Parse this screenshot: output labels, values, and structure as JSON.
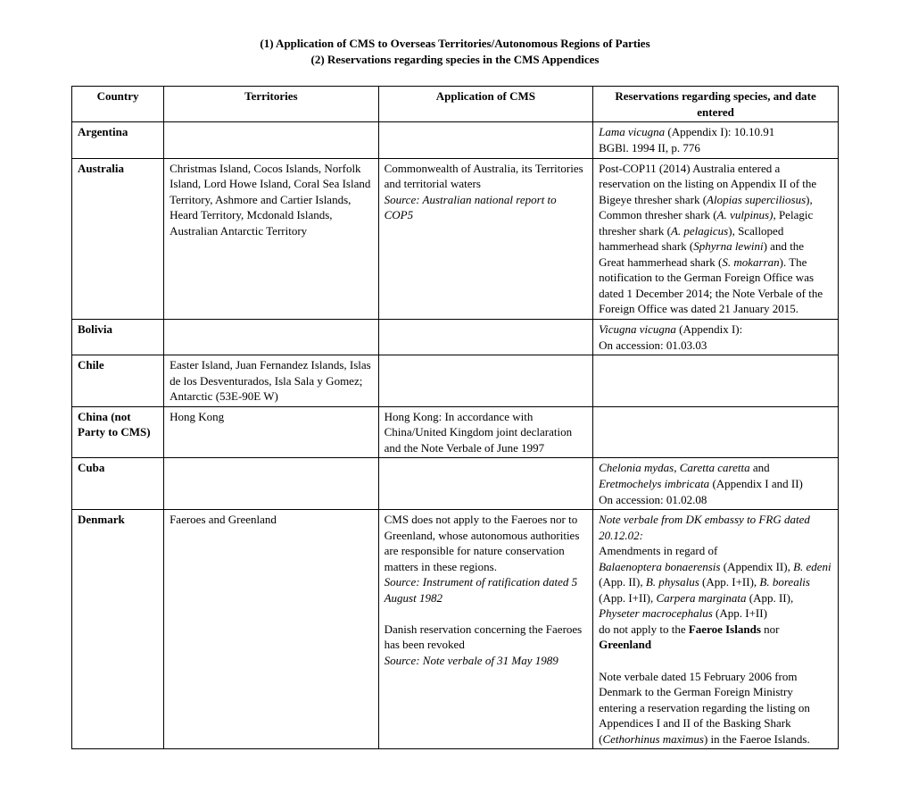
{
  "title1": "(1)  Application of CMS to Overseas Territories/Autonomous Regions of Parties",
  "title2": "(2)  Reservations regarding species in the CMS Appendices",
  "headers": {
    "country": "Country",
    "territories": "Territories",
    "application": "Application of CMS",
    "reservations": "Reservations regarding species, and date entered"
  },
  "rows": {
    "argentina": {
      "country": "Argentina",
      "res_species": "Lama vicugna",
      "res_after": " (Appendix I):  10.10.91",
      "res_line2": "BGBl. 1994 II, p. 776"
    },
    "australia": {
      "country": "Australia",
      "territories": "Christmas Island, Cocos Islands, Norfolk Island, Lord Howe Island, Coral Sea Island Territory, Ashmore and Cartier Islands, Heard Territory, Mcdonald Islands, Australian Antarctic Territory",
      "app_line1": "Commonwealth of Australia, its Territories and territorial waters",
      "app_source": "Source: Australian national report to COP5",
      "res_a": "Post-COP11 (2014) Australia entered a reservation on the listing on Appendix II of the Bigeye thresher shark (",
      "res_sp1": "Alopias superciliosus",
      "res_b": "), Common thresher shark (",
      "res_sp2": "A. vulpinus),",
      "res_c": " Pelagic thresher shark (",
      "res_sp3": "A. pelagicus",
      "res_d": "), Scalloped hammerhead shark (",
      "res_sp4": "Sphyrna lewini",
      "res_e": ") and the Great hammerhead shark (",
      "res_sp5": "S. mokarran",
      "res_f": ").  The notification to the German Foreign Office was dated 1 December 2014; the Note Verbale of the Foreign Office was dated 21 January 2015."
    },
    "bolivia": {
      "country": "Bolivia",
      "res_sp": "Vicugna vicugna",
      "res_after": " (Appendix I):",
      "res_line2": "On accession: 01.03.03"
    },
    "chile": {
      "country": "Chile",
      "territories": "Easter Island, Juan Fernandez Islands, Islas de los Desventurados, Isla Sala y Gomez; Antarctic (53E-90E W)"
    },
    "china": {
      "country": "China (not Party to CMS)",
      "territories": "Hong Kong",
      "application": "Hong Kong:  In accordance with China/United Kingdom joint declaration and the Note Verbale of June 1997"
    },
    "cuba": {
      "country": "Cuba",
      "res_sp1": "Chelonia mydas",
      "res_mid1": ", ",
      "res_sp2": "Caretta caretta",
      "res_mid2": " and ",
      "res_sp3": "Eretmochelys imbricata",
      "res_after": " (Appendix I and II)",
      "res_line2": "On accession:  01.02.08"
    },
    "denmark": {
      "country": "Denmark",
      "territories": "Faeroes and Greenland",
      "app_p1": "CMS does not apply to the Faeroes nor to Greenland, whose autonomous authorities are responsible for nature conservation matters in these regions.",
      "app_src1": "Source: Instrument of ratification dated 5 August 1982",
      "app_p2": "Danish reservation concerning the Faeroes has been revoked",
      "app_src2": "Source: Note verbale of 31 May 1989",
      "res_nv": "Note verbale from DK embassy to FRG dated 20.12.02:",
      "res_a": "Amendments in regard of",
      "res_sp1": "Balaenoptera bonaerensis",
      "res_t1": " (Appendix II), ",
      "res_sp2": "B. edeni",
      "res_t2": " (App. II), ",
      "res_sp3": "B. physalus",
      "res_t3": " (App. I+II), ",
      "res_sp4": "B. borealis",
      "res_t4": " (App. I+II), ",
      "res_sp5": "Carpera marginata",
      "res_t5": " (App. II), ",
      "res_sp6": "Physeter macrocephalus",
      "res_t6": " (App. I+II)",
      "res_b1": "do not apply to the ",
      "res_bold1": "Faeroe Islands",
      "res_b2": " nor ",
      "res_bold2": "Greenland",
      "res_p2a": "Note verbale dated 15 February 2006 from Denmark to the German Foreign Ministry entering a reservation regarding the listing on Appendices I and II of the Basking Shark (",
      "res_sp7": "Cethorhinus maximus",
      "res_p2b": ") in the Faeroe Islands."
    }
  }
}
